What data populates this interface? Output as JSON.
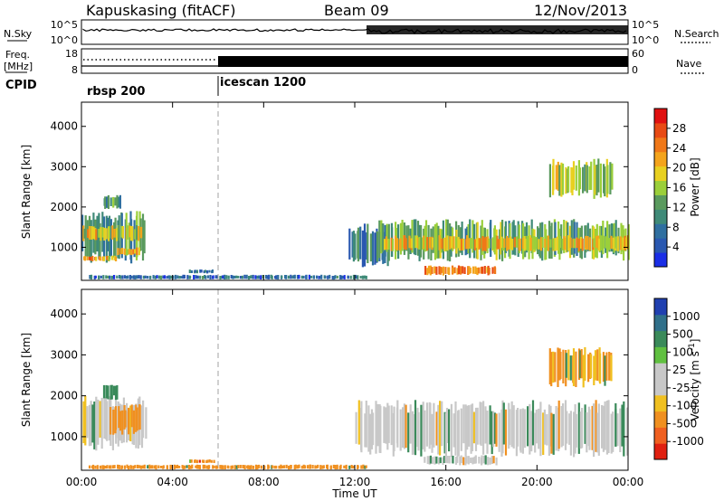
{
  "header": {
    "station": "Kapuskasing (fitACF)",
    "beam": "Beam 09",
    "date": "12/Nov/2013"
  },
  "left_labels": {
    "nsky": "N.Sky",
    "freq_line1": "Freq.",
    "freq_line2": "[MHz]",
    "cpid": "CPID"
  },
  "right_labels": {
    "nsearch": "N.Search",
    "nave": "Nave"
  },
  "cpid_programs": [
    {
      "name": "rbsp 200",
      "start": "00:00"
    },
    {
      "name": "icescan 1200",
      "start": "06:00"
    }
  ],
  "noise_panel": {
    "left_ticks": [
      "10^5",
      "10^0"
    ],
    "right_ticks": [
      "10^5",
      "10^0"
    ]
  },
  "freq_panel": {
    "left_ticks": [
      "18",
      "8"
    ],
    "right_ticks": [
      "60",
      "0"
    ]
  },
  "colors": {
    "power_scale": [
      "#1a2ee6",
      "#2a58b0",
      "#2f6fa0",
      "#3f8a78",
      "#5a9a5e",
      "#9bcf3a",
      "#e8d020",
      "#f4a41c",
      "#f07818",
      "#e84a14",
      "#e01010"
    ],
    "velocity_scale": [
      "#2040b0",
      "#30708a",
      "#3a8a5a",
      "#60c040",
      "#c8c8c8",
      "#c8c8c8",
      "#f0c020",
      "#f09020",
      "#f06020",
      "#e02010"
    ],
    "cpid_divider": "#a0a0a0"
  },
  "chart_data": [
    {
      "type": "heatmap",
      "panel": "power",
      "xlabel": "Time UT",
      "ylabel": "Slant Range [km]",
      "x_range": [
        "00:00",
        "00:00 (+24h)"
      ],
      "x_ticks": [
        "00:00",
        "04:00",
        "08:00",
        "12:00",
        "16:00",
        "20:00",
        "00:00"
      ],
      "y_ticks": [
        1000,
        2000,
        3000,
        4000
      ],
      "ylim": [
        180,
        4600
      ],
      "colorbar_label": "Power [dB]",
      "colorbar_ticks": [
        "4",
        "8",
        "12",
        "16",
        "20",
        "24",
        "28"
      ],
      "colorbar_range": [
        0,
        30
      ],
      "echo_regions": [
        {
          "t_start": 0.0,
          "t_end": 2.8,
          "range_start": 600,
          "range_end": 1900,
          "power_db": 10
        },
        {
          "t_start": 0.0,
          "t_end": 2.6,
          "range_start": 1150,
          "range_end": 1550,
          "power_db": 18
        },
        {
          "t_start": 0.0,
          "t_end": 1.5,
          "range_start": 650,
          "range_end": 800,
          "power_db": 21
        },
        {
          "t_start": 1.5,
          "t_end": 2.5,
          "range_start": 800,
          "range_end": 1000,
          "power_db": 20
        },
        {
          "t_start": 0.9,
          "t_end": 1.7,
          "range_start": 1950,
          "range_end": 2300,
          "power_db": 10
        },
        {
          "t_start": 0.3,
          "t_end": 12.5,
          "range_start": 200,
          "range_end": 320,
          "power_db": 6
        },
        {
          "t_start": 4.7,
          "t_end": 5.8,
          "range_start": 350,
          "range_end": 450,
          "power_db": 5
        },
        {
          "t_start": 11.7,
          "t_end": 13.5,
          "range_start": 500,
          "range_end": 1600,
          "power_db": 7
        },
        {
          "t_start": 13.0,
          "t_end": 24.0,
          "range_start": 650,
          "range_end": 1700,
          "power_db": 12
        },
        {
          "t_start": 13.2,
          "t_end": 24.0,
          "range_start": 900,
          "range_end": 1300,
          "power_db": 19
        },
        {
          "t_start": 15.0,
          "t_end": 18.2,
          "range_start": 300,
          "range_end": 550,
          "power_db": 23
        },
        {
          "t_start": 20.5,
          "t_end": 23.3,
          "range_start": 2200,
          "range_end": 3200,
          "power_db": 15
        }
      ]
    },
    {
      "type": "heatmap",
      "panel": "velocity",
      "xlabel": "Time UT",
      "ylabel": "Slant Range [km]",
      "x_ticks": [
        "00:00",
        "04:00",
        "08:00",
        "12:00",
        "16:00",
        "20:00",
        "00:00"
      ],
      "y_ticks": [
        1000,
        2000,
        3000,
        4000
      ],
      "ylim": [
        180,
        4600
      ],
      "colorbar_label": "Velocity [m s^-1]",
      "colorbar_ticks": [
        "1000",
        "500",
        "100",
        "25",
        "-25",
        "-100",
        "-500",
        "-1000"
      ],
      "echo_regions": [
        {
          "t_start": 0.0,
          "t_end": 2.8,
          "range_start": 650,
          "range_end": 2000,
          "velocity": 0
        },
        {
          "t_start": 1.2,
          "t_end": 2.6,
          "range_start": 1050,
          "range_end": 1800,
          "velocity": -150
        },
        {
          "t_start": 0.9,
          "t_end": 1.6,
          "range_start": 1900,
          "range_end": 2350,
          "velocity": 150
        },
        {
          "t_start": 0.3,
          "t_end": 12.5,
          "range_start": 200,
          "range_end": 320,
          "velocity": -150
        },
        {
          "t_start": 4.7,
          "t_end": 5.8,
          "range_start": 350,
          "range_end": 450,
          "velocity": -300
        },
        {
          "t_start": 12.0,
          "t_end": 24.0,
          "range_start": 500,
          "range_end": 1900,
          "velocity": 0
        },
        {
          "t_start": 15.0,
          "t_end": 18.2,
          "range_start": 300,
          "range_end": 550,
          "velocity": 0
        },
        {
          "t_start": 20.5,
          "t_end": 23.3,
          "range_start": 2200,
          "range_end": 3200,
          "velocity": -100
        }
      ]
    }
  ]
}
